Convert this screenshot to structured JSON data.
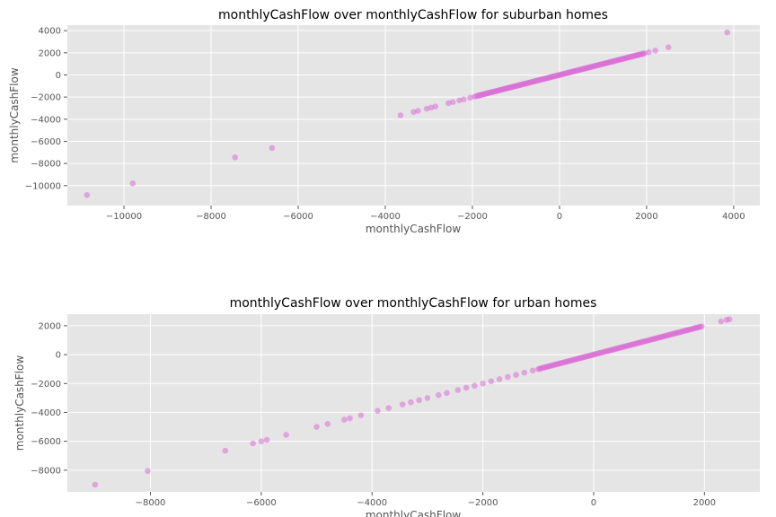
{
  "chart_data": [
    {
      "type": "scatter",
      "title": "monthlyCashFlow over monthlyCashFlow for suburban homes",
      "xlabel": "monthlyCashFlow",
      "ylabel": "monthlyCashFlow",
      "xlim": [
        -11300,
        4600
      ],
      "ylim": [
        -11800,
        4500
      ],
      "xticks": [
        -10000,
        -8000,
        -6000,
        -4000,
        -2000,
        0,
        2000,
        4000
      ],
      "xtick_labels": [
        "−10000",
        "−8000",
        "−6000",
        "−4000",
        "−2000",
        "0",
        "2000",
        "4000"
      ],
      "yticks": [
        -10000,
        -8000,
        -6000,
        -4000,
        -2000,
        0,
        2000,
        4000
      ],
      "ytick_labels": [
        "−10000",
        "−8000",
        "−6000",
        "−4000",
        "−2000",
        "0",
        "2000",
        "4000"
      ],
      "grid": true,
      "color": "#da70d6",
      "points": [
        [
          -10850,
          -10850
        ],
        [
          -9800,
          -9800
        ],
        [
          -7450,
          -7450
        ],
        [
          -6600,
          -6600
        ],
        [
          -3650,
          -3650
        ],
        [
          -3350,
          -3350
        ],
        [
          -3250,
          -3250
        ],
        [
          -3050,
          -3050
        ],
        [
          -2950,
          -2950
        ],
        [
          -2850,
          -2850
        ],
        [
          -2550,
          -2550
        ],
        [
          -2450,
          -2450
        ],
        [
          -2300,
          -2300
        ],
        [
          -2200,
          -2200
        ],
        [
          -2050,
          -2050
        ],
        [
          -1950,
          -1950
        ],
        [
          2050,
          2050
        ],
        [
          2200,
          2200
        ],
        [
          2500,
          2500
        ],
        [
          3850,
          3850
        ]
      ],
      "dense_ranges": [
        [
          -1900,
          1950
        ]
      ]
    },
    {
      "type": "scatter",
      "title": "monthlyCashFlow over monthlyCashFlow for urban homes",
      "xlabel": "monthlyCashFlow",
      "ylabel": "monthlyCashFlow",
      "xlim": [
        -9500,
        3000
      ],
      "ylim": [
        -9500,
        2800
      ],
      "xticks": [
        -8000,
        -6000,
        -4000,
        -2000,
        0,
        2000
      ],
      "xtick_labels": [
        "−8000",
        "−6000",
        "−4000",
        "−2000",
        "0",
        "2000"
      ],
      "yticks": [
        -8000,
        -6000,
        -4000,
        -2000,
        0,
        2000
      ],
      "ytick_labels": [
        "−8000",
        "−6000",
        "−4000",
        "−2000",
        "0",
        "2000"
      ],
      "grid": true,
      "color": "#da70d6",
      "points": [
        [
          -9000,
          -9000
        ],
        [
          -8050,
          -8050
        ],
        [
          -6650,
          -6650
        ],
        [
          -6150,
          -6150
        ],
        [
          -6000,
          -6000
        ],
        [
          -5900,
          -5900
        ],
        [
          -5550,
          -5550
        ],
        [
          -5000,
          -5000
        ],
        [
          -4800,
          -4800
        ],
        [
          -4500,
          -4500
        ],
        [
          -4400,
          -4400
        ],
        [
          -4200,
          -4200
        ],
        [
          -3900,
          -3900
        ],
        [
          -3700,
          -3700
        ],
        [
          -3450,
          -3450
        ],
        [
          -3300,
          -3300
        ],
        [
          -3150,
          -3150
        ],
        [
          -3000,
          -3000
        ],
        [
          -2800,
          -2800
        ],
        [
          -2650,
          -2650
        ],
        [
          -2450,
          -2450
        ],
        [
          -2300,
          -2300
        ],
        [
          -2150,
          -2150
        ],
        [
          -2000,
          -2000
        ],
        [
          -1850,
          -1850
        ],
        [
          -1700,
          -1700
        ],
        [
          -1550,
          -1550
        ],
        [
          -1400,
          -1400
        ],
        [
          -1250,
          -1250
        ],
        [
          -1100,
          -1100
        ],
        [
          2300,
          2300
        ],
        [
          2400,
          2400
        ],
        [
          2450,
          2450
        ]
      ],
      "dense_ranges": [
        [
          -1000,
          1950
        ]
      ]
    }
  ]
}
